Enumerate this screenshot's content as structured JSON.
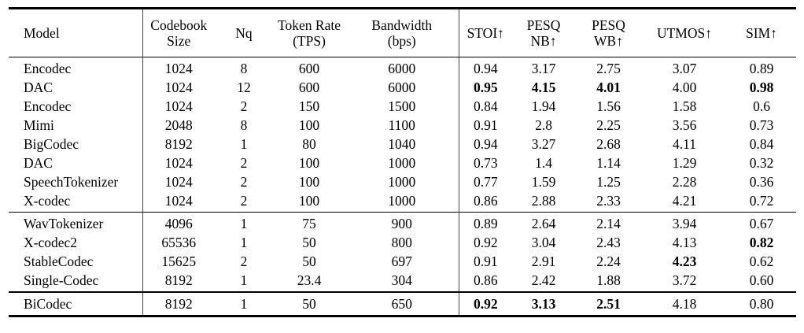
{
  "table": {
    "columns": [
      {
        "id": "model",
        "lines": [
          "Model"
        ]
      },
      {
        "id": "codebook-size",
        "lines": [
          "Codebook",
          "Size"
        ]
      },
      {
        "id": "nq",
        "lines": [
          "Nq"
        ]
      },
      {
        "id": "token-rate",
        "lines": [
          "Token Rate",
          "(TPS)"
        ]
      },
      {
        "id": "bandwidth",
        "lines": [
          "Bandwidth",
          "(bps)"
        ]
      },
      {
        "id": "stoi",
        "lines": [
          "STOI↑"
        ]
      },
      {
        "id": "pesq-nb",
        "lines": [
          "PESQ",
          "NB↑"
        ]
      },
      {
        "id": "pesq-wb",
        "lines": [
          "PESQ",
          "WB↑"
        ]
      },
      {
        "id": "utmos",
        "lines": [
          "UTMOS↑"
        ]
      },
      {
        "id": "sim",
        "lines": [
          "SIM↑"
        ]
      }
    ],
    "groups": [
      {
        "rows": [
          {
            "cells": [
              "Encodec",
              "1024",
              "8",
              "600",
              "6000",
              "0.94",
              "3.17",
              "2.75",
              "3.07",
              "0.89"
            ],
            "bold_cols": []
          },
          {
            "cells": [
              "DAC",
              "1024",
              "12",
              "600",
              "6000",
              "0.95",
              "4.15",
              "4.01",
              "4.00",
              "0.98"
            ],
            "bold_cols": [
              5,
              6,
              7,
              9
            ]
          },
          {
            "cells": [
              "Encodec",
              "1024",
              "2",
              "150",
              "1500",
              "0.84",
              "1.94",
              "1.56",
              "1.58",
              "0.6"
            ],
            "bold_cols": []
          },
          {
            "cells": [
              "Mimi",
              "2048",
              "8",
              "100",
              "1100",
              "0.91",
              "2.8",
              "2.25",
              "3.56",
              "0.73"
            ],
            "bold_cols": []
          },
          {
            "cells": [
              "BigCodec",
              "8192",
              "1",
              "80",
              "1040",
              "0.94",
              "3.27",
              "2.68",
              "4.11",
              "0.84"
            ],
            "bold_cols": []
          },
          {
            "cells": [
              "DAC",
              "1024",
              "2",
              "100",
              "1000",
              "0.73",
              "1.4",
              "1.14",
              "1.29",
              "0.32"
            ],
            "bold_cols": []
          },
          {
            "cells": [
              "SpeechTokenizer",
              "1024",
              "2",
              "100",
              "1000",
              "0.77",
              "1.59",
              "1.25",
              "2.28",
              "0.36"
            ],
            "bold_cols": []
          },
          {
            "cells": [
              "X-codec",
              "1024",
              "2",
              "100",
              "1000",
              "0.86",
              "2.88",
              "2.33",
              "4.21",
              "0.72"
            ],
            "bold_cols": []
          }
        ]
      },
      {
        "rows": [
          {
            "cells": [
              "WavTokenizer",
              "4096",
              "1",
              "75",
              "900",
              "0.89",
              "2.64",
              "2.14",
              "3.94",
              "0.67"
            ],
            "bold_cols": []
          },
          {
            "cells": [
              "X-codec2",
              "65536",
              "1",
              "50",
              "800",
              "0.92",
              "3.04",
              "2.43",
              "4.13",
              "0.82"
            ],
            "bold_cols": [
              9
            ]
          },
          {
            "cells": [
              "StableCodec",
              "15625",
              "2",
              "50",
              "697",
              "0.91",
              "2.91",
              "2.24",
              "4.23",
              "0.62"
            ],
            "bold_cols": [
              8
            ]
          },
          {
            "cells": [
              "Single-Codec",
              "8192",
              "1",
              "23.4",
              "304",
              "0.86",
              "2.42",
              "1.88",
              "3.72",
              "0.60"
            ],
            "bold_cols": []
          }
        ]
      },
      {
        "rows": [
          {
            "cells": [
              "BiCodec",
              "8192",
              "1",
              "50",
              "650",
              "0.92",
              "3.13",
              "2.51",
              "4.18",
              "0.80"
            ],
            "bold_cols": [
              5,
              6,
              7
            ]
          }
        ]
      }
    ]
  }
}
